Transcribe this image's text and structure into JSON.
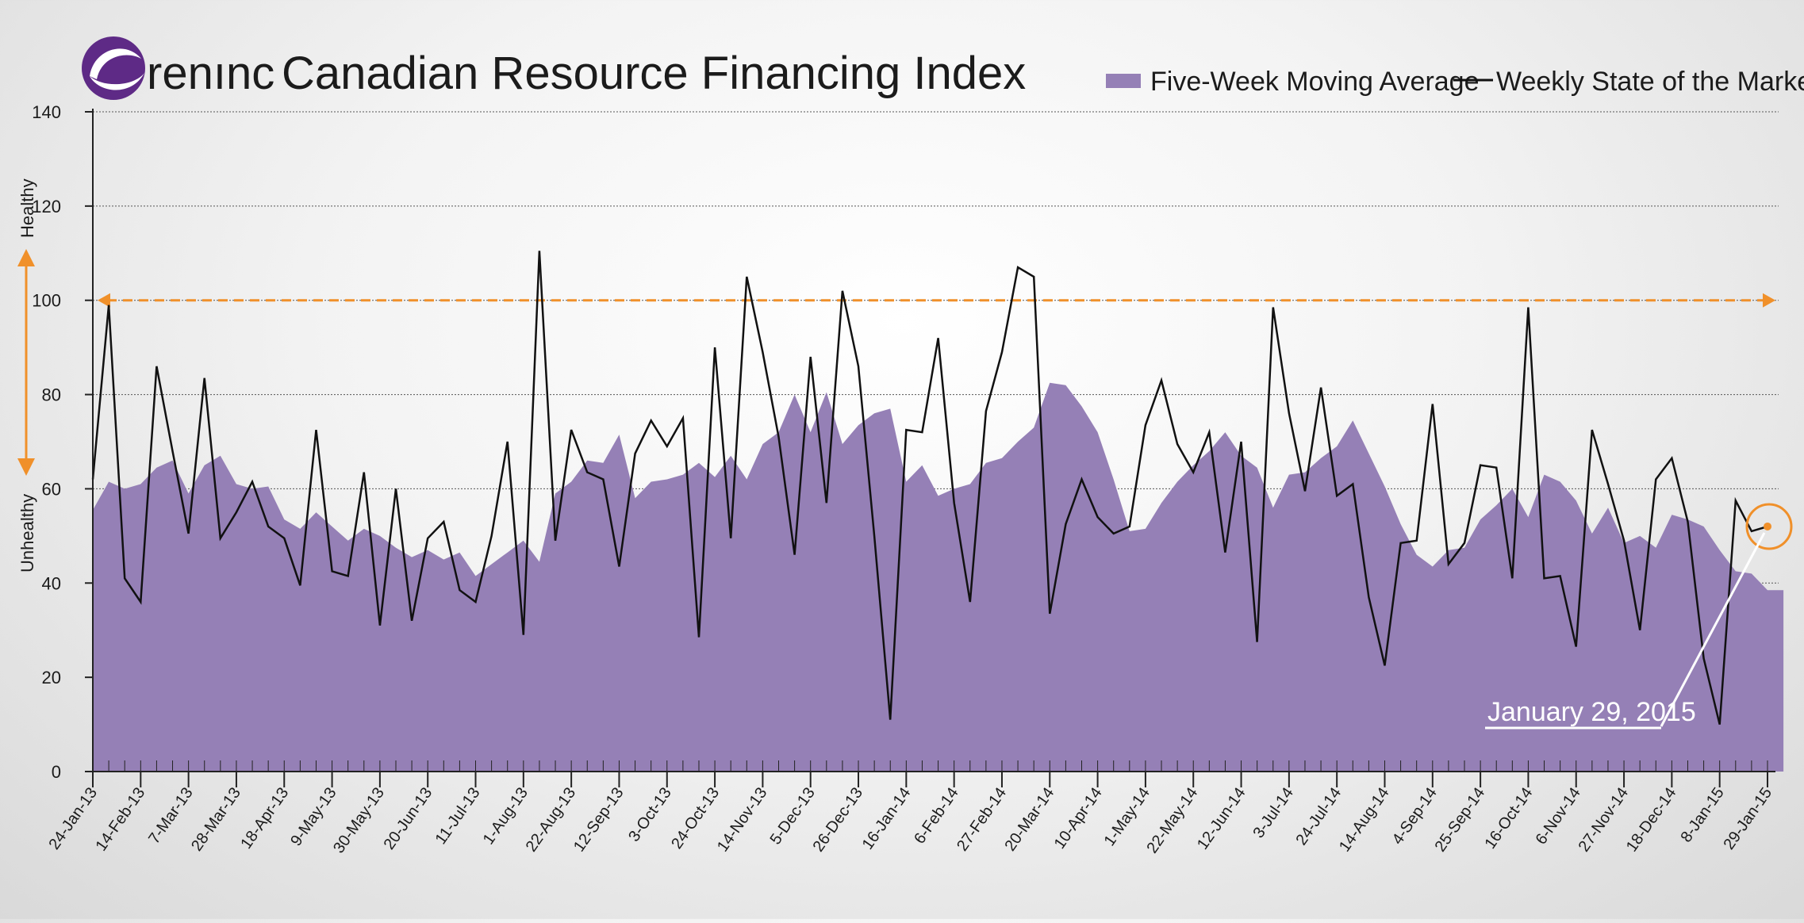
{
  "header": {
    "brand": "renınc",
    "title": "Canadian Resource Financing Index"
  },
  "side_labels": {
    "top": "Healthy",
    "bottom": "Unhealthy"
  },
  "colors": {
    "area": "#9580b6",
    "line": "#111111",
    "threshold": "#f0902a",
    "logo_purple": "#5e2a86",
    "grid": "#555555"
  },
  "chart_data": {
    "type": "area",
    "legend_position": "top-right",
    "ylim": [
      0,
      140
    ],
    "y_ticks": [
      "0",
      "20",
      "40",
      "60",
      "80",
      "100",
      "120",
      "140"
    ],
    "x_tick_labels": [
      "24-Jan-13",
      "14-Feb-13",
      "7-Mar-13",
      "28-Mar-13",
      "18-Apr-13",
      "9-May-13",
      "30-May-13",
      "20-Jun-13",
      "11-Jul-13",
      "1-Aug-13",
      "22-Aug-13",
      "12-Sep-13",
      "3-Oct-13",
      "24-Oct-13",
      "14-Nov-13",
      "5-Dec-13",
      "26-Dec-13",
      "16-Jan-14",
      "6-Feb-14",
      "27-Feb-14",
      "20-Mar-14",
      "10-Apr-14",
      "1-May-14",
      "22-May-14",
      "12-Jun-14",
      "3-Jul-14",
      "24-Jul-14",
      "14-Aug-14",
      "4-Sep-14",
      "25-Sep-14",
      "16-Oct-14",
      "6-Nov-14",
      "27-Nov-14",
      "18-Dec-14",
      "8-Jan-15",
      "29-Jan-15"
    ],
    "threshold": 100,
    "series": [
      {
        "name": "Five-Week Moving Average",
        "kind": "area",
        "values": [
          55.5,
          61.5,
          60,
          61,
          64.5,
          66,
          59,
          65,
          67,
          61,
          60,
          60.5,
          53.5,
          51.5,
          55,
          52,
          49,
          51.5,
          50,
          47.5,
          45.5,
          47,
          45,
          46.5,
          41.5,
          44,
          46.5,
          49,
          44.5,
          59,
          61.5,
          66,
          65.5,
          71.5,
          58,
          61.5,
          62,
          63,
          65.5,
          62.5,
          67,
          62,
          69.5,
          72,
          80,
          72,
          80.5,
          69.5,
          73.5,
          76,
          77,
          61.5,
          65,
          58.5,
          60,
          61,
          65.5,
          66.5,
          70,
          73,
          82.5,
          82,
          77.5,
          72,
          62,
          51,
          51.5,
          57,
          61.5,
          65,
          68,
          72,
          67,
          64.5,
          56,
          63,
          63.5,
          66.5,
          69,
          74.5,
          67.5,
          60.5,
          52.5,
          46,
          43.5,
          47,
          47.5,
          53.5,
          56.5,
          60,
          54,
          63,
          61.5,
          57.5,
          50.5,
          56,
          48.5,
          50,
          47.5,
          54.5,
          53.5,
          52,
          47,
          42.5,
          42,
          38.5,
          38.5
        ]
      },
      {
        "name": "Weekly State of the Market",
        "kind": "line",
        "values": [
          62,
          99,
          41,
          36,
          86,
          68,
          50.5,
          83.5,
          49.5,
          55,
          61.5,
          52,
          49.5,
          39.5,
          72.5,
          42.5,
          41.5,
          63.5,
          31,
          60,
          32,
          49.5,
          53,
          38.5,
          36,
          50,
          70,
          29,
          110.5,
          49,
          72.5,
          63.5,
          62,
          43.5,
          67.5,
          74.5,
          69,
          75,
          28.5,
          90,
          49.5,
          105,
          89,
          71,
          46,
          88,
          57,
          102,
          86,
          50,
          11,
          72.5,
          72,
          92,
          57,
          36,
          76.5,
          89,
          107,
          105,
          33.5,
          52.5,
          62,
          54,
          50.5,
          52,
          73.5,
          83,
          69.5,
          63.5,
          72,
          46.5,
          70,
          27.5,
          98.5,
          76,
          59.5,
          81.5,
          58.5,
          61,
          37,
          22.5,
          48.5,
          49,
          78,
          44,
          48.5,
          65,
          64.5,
          41,
          98.5,
          41,
          41.5,
          26.5,
          72.5,
          61,
          49,
          30,
          62,
          66.5,
          53,
          24,
          10,
          57.5,
          51,
          52
        ]
      }
    ]
  },
  "annotation": {
    "label": "January 29, 2015"
  }
}
